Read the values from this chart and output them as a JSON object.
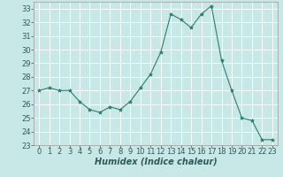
{
  "x": [
    0,
    1,
    2,
    3,
    4,
    5,
    6,
    7,
    8,
    9,
    10,
    11,
    12,
    13,
    14,
    15,
    16,
    17,
    18,
    19,
    20,
    21,
    22,
    23
  ],
  "y": [
    27,
    27.2,
    27,
    27,
    26.2,
    25.6,
    25.4,
    25.8,
    25.6,
    26.2,
    27.2,
    28.2,
    29.8,
    32.6,
    32.2,
    31.6,
    32.6,
    33.2,
    29.2,
    27,
    25,
    24.8,
    23.4,
    23.4
  ],
  "line_color": "#2d7d6e",
  "marker": "*",
  "marker_size": 3,
  "bg_color": "#c8e8e8",
  "grid_color": "#ffffff",
  "xlabel": "Humidex (Indice chaleur)",
  "xlabel_style": "italic",
  "xlabel_fontsize": 7,
  "tick_fontsize": 6,
  "xlim": [
    -0.5,
    23.5
  ],
  "ylim": [
    23,
    33.5
  ],
  "yticks": [
    23,
    24,
    25,
    26,
    27,
    28,
    29,
    30,
    31,
    32,
    33
  ],
  "xticks": [
    0,
    1,
    2,
    3,
    4,
    5,
    6,
    7,
    8,
    9,
    10,
    11,
    12,
    13,
    14,
    15,
    16,
    17,
    18,
    19,
    20,
    21,
    22,
    23
  ]
}
